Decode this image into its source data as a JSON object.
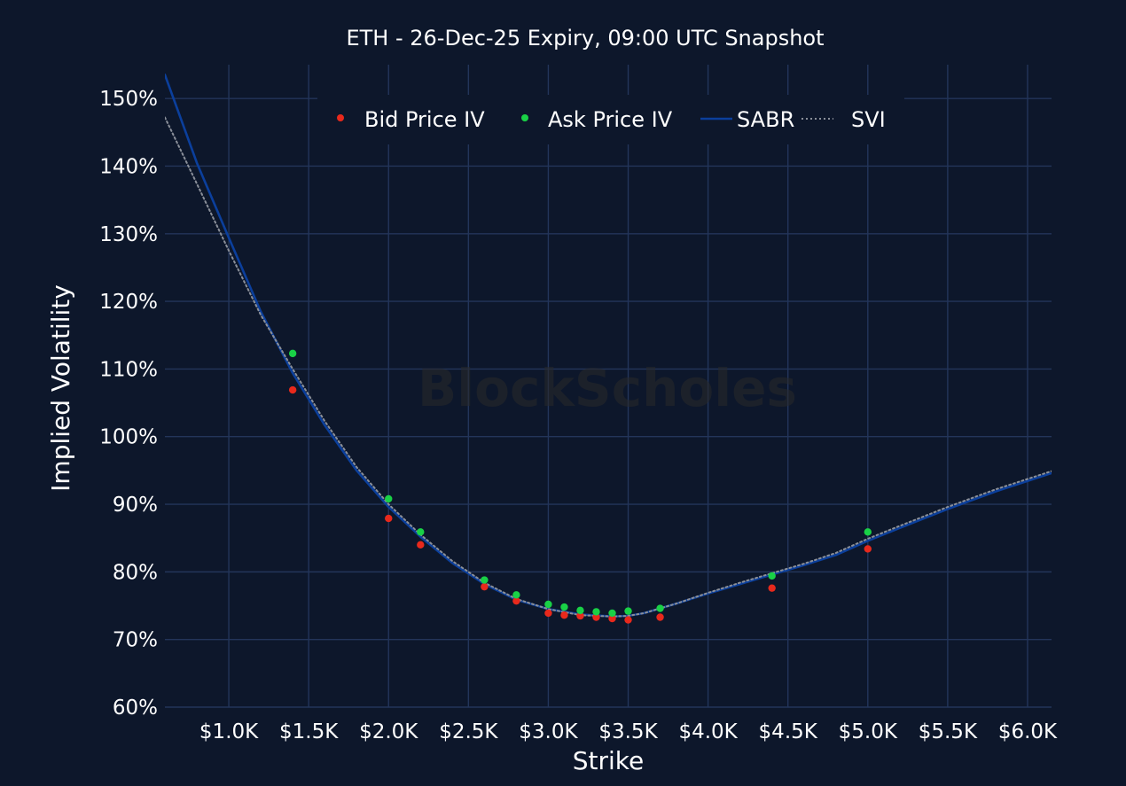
{
  "chart_data": {
    "type": "scatter",
    "title": "ETH - 26-Dec-25 Expiry, 09:00 UTC Snapshot",
    "xlabel": "Strike",
    "ylabel": "Implied Volatility",
    "watermark": "BlockScholes",
    "xlim": [
      600,
      6150
    ],
    "ylim": [
      60,
      155
    ],
    "x_ticks": [
      {
        "value": 1000,
        "label": "$1.0K"
      },
      {
        "value": 1500,
        "label": "$1.5K"
      },
      {
        "value": 2000,
        "label": "$2.0K"
      },
      {
        "value": 2500,
        "label": "$2.5K"
      },
      {
        "value": 3000,
        "label": "$3.0K"
      },
      {
        "value": 3500,
        "label": "$3.5K"
      },
      {
        "value": 4000,
        "label": "$4.0K"
      },
      {
        "value": 4500,
        "label": "$4.5K"
      },
      {
        "value": 5000,
        "label": "$5.0K"
      },
      {
        "value": 5500,
        "label": "$5.5K"
      },
      {
        "value": 6000,
        "label": "$6.0K"
      }
    ],
    "y_ticks": [
      {
        "value": 60,
        "label": "60%"
      },
      {
        "value": 70,
        "label": "70%"
      },
      {
        "value": 80,
        "label": "80%"
      },
      {
        "value": 90,
        "label": "90%"
      },
      {
        "value": 100,
        "label": "100%"
      },
      {
        "value": 110,
        "label": "110%"
      },
      {
        "value": 120,
        "label": "120%"
      },
      {
        "value": 130,
        "label": "130%"
      },
      {
        "value": 140,
        "label": "140%"
      },
      {
        "value": 150,
        "label": "150%"
      }
    ],
    "grid": true,
    "legend_position": "top",
    "series": [
      {
        "name": "Bid Price IV",
        "kind": "scatter",
        "color": "#e8291c",
        "points": [
          [
            1400,
            106.9
          ],
          [
            2000,
            87.9
          ],
          [
            2200,
            84.0
          ],
          [
            2600,
            77.8
          ],
          [
            2800,
            75.7
          ],
          [
            3000,
            73.9
          ],
          [
            3100,
            73.6
          ],
          [
            3200,
            73.5
          ],
          [
            3300,
            73.3
          ],
          [
            3400,
            73.1
          ],
          [
            3500,
            72.9
          ],
          [
            3700,
            73.3
          ],
          [
            4400,
            77.6
          ],
          [
            5000,
            83.4
          ]
        ]
      },
      {
        "name": "Ask Price IV",
        "kind": "scatter",
        "color": "#19d146",
        "points": [
          [
            1400,
            112.3
          ],
          [
            2000,
            90.8
          ],
          [
            2200,
            85.9
          ],
          [
            2600,
            78.8
          ],
          [
            2800,
            76.6
          ],
          [
            3000,
            75.2
          ],
          [
            3100,
            74.8
          ],
          [
            3200,
            74.3
          ],
          [
            3300,
            74.1
          ],
          [
            3400,
            73.9
          ],
          [
            3500,
            74.2
          ],
          [
            3700,
            74.6
          ],
          [
            4400,
            79.4
          ],
          [
            5000,
            85.9
          ]
        ]
      },
      {
        "name": "SABR",
        "kind": "line",
        "color": "#0b3f9c",
        "points": [
          [
            600,
            153.5
          ],
          [
            800,
            140.5
          ],
          [
            1000,
            129.4
          ],
          [
            1200,
            118.5
          ],
          [
            1400,
            109.4
          ],
          [
            1600,
            101.7
          ],
          [
            1800,
            95.0
          ],
          [
            2000,
            89.6
          ],
          [
            2200,
            85.2
          ],
          [
            2400,
            81.3
          ],
          [
            2600,
            78.2
          ],
          [
            2800,
            75.9
          ],
          [
            3000,
            74.5
          ],
          [
            3200,
            73.7
          ],
          [
            3400,
            73.4
          ],
          [
            3500,
            73.5
          ],
          [
            3600,
            73.9
          ],
          [
            3800,
            75.3
          ],
          [
            4000,
            76.8
          ],
          [
            4200,
            78.2
          ],
          [
            4400,
            79.6
          ],
          [
            4600,
            81.0
          ],
          [
            4800,
            82.5
          ],
          [
            5000,
            84.6
          ],
          [
            5200,
            86.5
          ],
          [
            5500,
            89.3
          ],
          [
            5800,
            91.9
          ],
          [
            6150,
            94.6
          ]
        ]
      },
      {
        "name": "SVI",
        "kind": "line",
        "style": "dotted",
        "color": "#8a8f99",
        "points": [
          [
            600,
            147.2
          ],
          [
            800,
            137.4
          ],
          [
            1000,
            127.5
          ],
          [
            1200,
            118.0
          ],
          [
            1400,
            110.0
          ],
          [
            1600,
            102.3
          ],
          [
            1800,
            95.5
          ],
          [
            2000,
            90.0
          ],
          [
            2200,
            85.5
          ],
          [
            2400,
            81.6
          ],
          [
            2600,
            78.4
          ],
          [
            2800,
            76.0
          ],
          [
            3000,
            74.5
          ],
          [
            3200,
            73.6
          ],
          [
            3400,
            73.4
          ],
          [
            3500,
            73.5
          ],
          [
            3600,
            73.9
          ],
          [
            3800,
            75.3
          ],
          [
            4000,
            76.9
          ],
          [
            4200,
            78.4
          ],
          [
            4400,
            79.8
          ],
          [
            4600,
            81.2
          ],
          [
            4800,
            82.8
          ],
          [
            5000,
            84.9
          ],
          [
            5200,
            86.8
          ],
          [
            5500,
            89.6
          ],
          [
            5800,
            92.2
          ],
          [
            6150,
            94.9
          ]
        ]
      }
    ]
  }
}
